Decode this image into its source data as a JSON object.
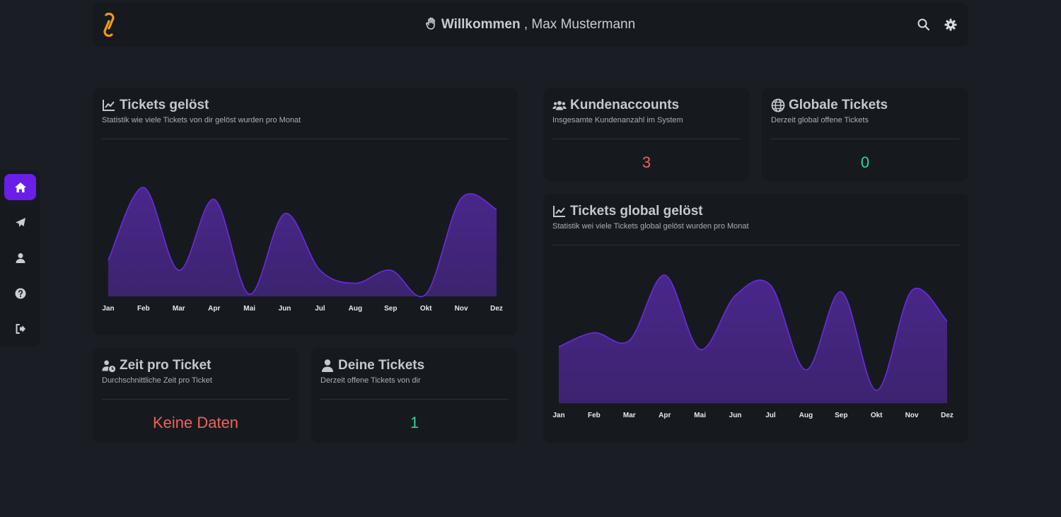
{
  "header": {
    "greeting": "Willkommen",
    "user_name": ", Max Mustermann",
    "icons": [
      "logo-icon",
      "wave-hand-icon",
      "search-icon",
      "gear-icon"
    ],
    "accent_color": "#f39c12"
  },
  "sidebar": {
    "items": [
      {
        "name": "home",
        "icon": "home-icon",
        "active": true
      },
      {
        "name": "send",
        "icon": "paper-plane-icon",
        "active": false
      },
      {
        "name": "profile",
        "icon": "user-icon",
        "active": false
      },
      {
        "name": "help",
        "icon": "question-icon",
        "active": false
      },
      {
        "name": "logout",
        "icon": "logout-icon",
        "active": false
      }
    ],
    "active_color": "#6a1ee8"
  },
  "cards": {
    "tickets_solved": {
      "title": "Tickets gelöst",
      "subtitle": "Statistik wie viele Tickets von dir gelöst wurden pro Monat"
    },
    "customer_accounts": {
      "title": "Kundenaccounts",
      "subtitle": "Insgesamte Kundenanzahl im System",
      "value": "3"
    },
    "global_tickets": {
      "title": "Globale Tickets",
      "subtitle": "Derzeit global offene Tickets",
      "value": "0"
    },
    "tickets_global_solved": {
      "title": "Tickets global gelöst",
      "subtitle": "Statistik wei viele Tickets global gelöst wurden pro Monat"
    },
    "time_per_ticket": {
      "title": "Zeit pro Ticket",
      "subtitle": "Durchschnittliche Zeit pro Ticket",
      "value": "Keine Daten"
    },
    "your_tickets": {
      "title": "Deine Tickets",
      "subtitle": "Derzeit offene Tickets von dir",
      "value": "1"
    }
  },
  "chart_data": [
    {
      "type": "area",
      "categories": [
        "Jan",
        "Feb",
        "Mar",
        "Apr",
        "Mai",
        "Jun",
        "Jul",
        "Aug",
        "Sep",
        "Okt",
        "Nov",
        "Dez"
      ],
      "series": [
        {
          "values": [
            3.3,
            10,
            2.4,
            8.9,
            0.2,
            7.6,
            2.4,
            1.2,
            2.4,
            0.2,
            9,
            8
          ]
        }
      ],
      "ylim": [
        0,
        10
      ],
      "grid": false,
      "color": "#5b2bb0"
    },
    {
      "type": "area",
      "categories": [
        "Jan",
        "Feb",
        "Mar",
        "Apr",
        "Mai",
        "Jun",
        "Jul",
        "Aug",
        "Sep",
        "Okt",
        "Nov",
        "Dez"
      ],
      "series": [
        {
          "values": [
            4.4,
            5.5,
            4.9,
            10,
            4.2,
            8.4,
            9.2,
            2.6,
            8.7,
            1,
            8.8,
            6.4
          ]
        }
      ],
      "ylim": [
        0,
        10
      ],
      "grid": false,
      "color": "#5b2bb0"
    }
  ]
}
